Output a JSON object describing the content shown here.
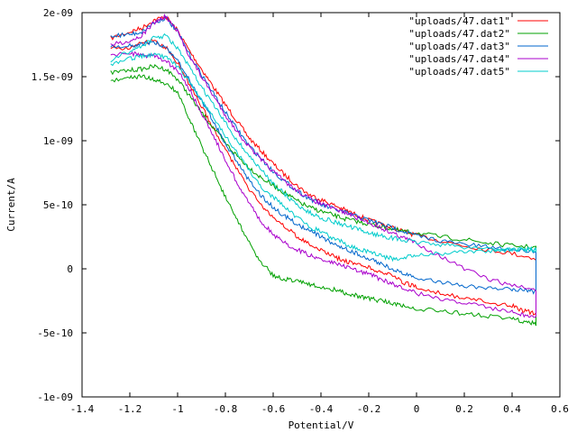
{
  "chart_data": {
    "type": "line",
    "title": "",
    "xlabel": "Potential/V",
    "ylabel": "Current/A",
    "xlim": [
      -1.4,
      0.6
    ],
    "ylim": [
      -1e-09,
      2e-09
    ],
    "x_ticks": [
      "-1.4",
      "-1.2",
      "-1",
      "-0.8",
      "-0.6",
      "-0.4",
      "-0.2",
      "0",
      "0.2",
      "0.4",
      "0.6"
    ],
    "y_ticks": [
      "-1e-09",
      "-5e-10",
      "0",
      "5e-10",
      "1e-09",
      "1.5e-09",
      "2e-09"
    ],
    "legend_position": "top-right",
    "grid": false,
    "note": "cyclic voltammograms: each series is a closed loop, values in V and A",
    "series": [
      {
        "name": "\"uploads/47.dat1\"",
        "color": "#ff0000",
        "x": [
          -1.28,
          -1.2,
          -1.15,
          -1.1,
          -1.05,
          -1.0,
          -0.95,
          -0.9,
          -0.85,
          -0.8,
          -0.75,
          -0.7,
          -0.65,
          -0.6,
          -0.55,
          -0.5,
          -0.45,
          -0.4,
          -0.35,
          -0.3,
          -0.25,
          -0.2,
          -0.15,
          -0.1,
          -0.05,
          0.0,
          0.1,
          0.2,
          0.3,
          0.4,
          0.5,
          0.5,
          0.45,
          0.4,
          0.3,
          0.2,
          0.1,
          0.0,
          -0.05,
          -0.1,
          -0.15,
          -0.2,
          -0.25,
          -0.3,
          -0.35,
          -0.4,
          -0.45,
          -0.5,
          -0.55,
          -0.6,
          -0.65,
          -0.7,
          -0.75,
          -0.8,
          -0.85,
          -0.9,
          -0.95,
          -1.0,
          -1.05,
          -1.1,
          -1.15,
          -1.2,
          -1.28
        ],
        "y": [
          1.8e-09,
          1.85e-09,
          1.88e-09,
          1.94e-09,
          1.97e-09,
          1.86e-09,
          1.7e-09,
          1.56e-09,
          1.42e-09,
          1.28e-09,
          1.15e-09,
          1.02e-09,
          9.2e-10,
          8.2e-10,
          7.3e-10,
          6.5e-10,
          5.8e-10,
          5.4e-10,
          5e-10,
          4.6e-10,
          4.2e-10,
          3.8e-10,
          3.5e-10,
          3.2e-10,
          2.9e-10,
          2.6e-10,
          2.2e-10,
          1.8e-10,
          1.5e-10,
          1.2e-10,
          8e-11,
          -3.5e-10,
          -3.3e-10,
          -2.9e-10,
          -2.6e-10,
          -2.3e-10,
          -1.9e-10,
          -1.4e-10,
          -1.1e-10,
          -6e-11,
          -2e-11,
          1e-11,
          3e-11,
          6e-11,
          1e-10,
          1.5e-10,
          2e-10,
          2.5e-10,
          3.3e-10,
          4e-10,
          5e-10,
          6.2e-10,
          7.7e-10,
          9.3e-10,
          1.1e-09,
          1.27e-09,
          1.44e-09,
          1.61e-09,
          1.73e-09,
          1.78e-09,
          1.76e-09,
          1.73e-09,
          1.72e-09
        ]
      },
      {
        "name": "\"uploads/47.dat2\"",
        "color": "#00a000",
        "x": [
          -1.28,
          -1.2,
          -1.15,
          -1.1,
          -1.05,
          -1.0,
          -0.95,
          -0.9,
          -0.85,
          -0.8,
          -0.75,
          -0.7,
          -0.65,
          -0.6,
          -0.55,
          -0.5,
          -0.45,
          -0.4,
          -0.35,
          -0.3,
          -0.25,
          -0.2,
          -0.15,
          -0.1,
          -0.05,
          0.0,
          0.1,
          0.2,
          0.3,
          0.4,
          0.5,
          0.5,
          0.45,
          0.4,
          0.3,
          0.2,
          0.1,
          0.0,
          -0.05,
          -0.1,
          -0.15,
          -0.2,
          -0.25,
          -0.3,
          -0.35,
          -0.4,
          -0.45,
          -0.5,
          -0.55,
          -0.6,
          -0.65,
          -0.7,
          -0.75,
          -0.8,
          -0.85,
          -0.9,
          -0.95,
          -1.0,
          -1.05,
          -1.1,
          -1.15,
          -1.2,
          -1.28
        ],
        "y": [
          1.53e-09,
          1.55e-09,
          1.56e-09,
          1.58e-09,
          1.56e-09,
          1.48e-09,
          1.35e-09,
          1.22e-09,
          1.1e-09,
          9.8e-10,
          8.8e-10,
          7.9e-10,
          7.1e-10,
          6.5e-10,
          5.9e-10,
          5.3e-10,
          4.8e-10,
          4.5e-10,
          4.2e-10,
          3.9e-10,
          3.7e-10,
          3.5e-10,
          3.3e-10,
          3.1e-10,
          2.9e-10,
          2.8e-10,
          2.5e-10,
          2.3e-10,
          2e-10,
          1.8e-10,
          1.7e-10,
          -4.3e-10,
          -4.1e-10,
          -3.9e-10,
          -3.7e-10,
          -3.5e-10,
          -3.3e-10,
          -3.1e-10,
          -2.9e-10,
          -2.7e-10,
          -2.5e-10,
          -2.3e-10,
          -2.1e-10,
          -1.9e-10,
          -1.6e-10,
          -1.4e-10,
          -1.2e-10,
          -1e-10,
          -8e-11,
          -5e-11,
          5e-11,
          2e-10,
          3.8e-10,
          5.6e-10,
          7.6e-10,
          9.6e-10,
          1.17e-09,
          1.38e-09,
          1.45e-09,
          1.48e-09,
          1.5e-09,
          1.49e-09,
          1.47e-09
        ]
      },
      {
        "name": "\"uploads/47.dat3\"",
        "color": "#0066cc",
        "x": [
          -1.28,
          -1.2,
          -1.15,
          -1.1,
          -1.05,
          -1.0,
          -0.95,
          -0.9,
          -0.85,
          -0.8,
          -0.75,
          -0.7,
          -0.65,
          -0.6,
          -0.55,
          -0.5,
          -0.45,
          -0.4,
          -0.35,
          -0.3,
          -0.25,
          -0.2,
          -0.15,
          -0.1,
          -0.05,
          0.0,
          0.1,
          0.2,
          0.3,
          0.4,
          0.5,
          0.5,
          0.45,
          0.4,
          0.3,
          0.2,
          0.1,
          0.0,
          -0.05,
          -0.1,
          -0.15,
          -0.2,
          -0.25,
          -0.3,
          -0.35,
          -0.4,
          -0.45,
          -0.5,
          -0.55,
          -0.6,
          -0.65,
          -0.7,
          -0.75,
          -0.8,
          -0.85,
          -0.9,
          -0.95,
          -1.0,
          -1.05,
          -1.1,
          -1.15,
          -1.2,
          -1.28
        ],
        "y": [
          1.82e-09,
          1.83e-09,
          1.85e-09,
          1.92e-09,
          1.96e-09,
          1.85e-09,
          1.67e-09,
          1.52e-09,
          1.37e-09,
          1.22e-09,
          1.09e-09,
          9.6e-10,
          8.6e-10,
          7.6e-10,
          6.8e-10,
          6.1e-10,
          5.5e-10,
          5e-10,
          4.7e-10,
          4.4e-10,
          4.1e-10,
          3.8e-10,
          3.5e-10,
          3.2e-10,
          2.9e-10,
          2.6e-10,
          2.2e-10,
          1.9e-10,
          1.7e-10,
          1.5e-10,
          1.4e-10,
          -1.8e-10,
          -1.7e-10,
          -1.6e-10,
          -1.5e-10,
          -1.3e-10,
          -1e-10,
          -7e-11,
          -4e-11,
          0.0,
          4e-11,
          8e-11,
          1.2e-10,
          1.6e-10,
          2e-10,
          2.5e-10,
          3e-10,
          3.5e-10,
          4.1e-10,
          4.8e-10,
          5.7e-10,
          6.9e-10,
          8.3e-10,
          9.8e-10,
          1.15e-09,
          1.31e-09,
          1.47e-09,
          1.62e-09,
          1.73e-09,
          1.77e-09,
          1.76e-09,
          1.74e-09,
          1.73e-09
        ]
      },
      {
        "name": "\"uploads/47.dat4\"",
        "color": "#aa00cc",
        "x": [
          -1.28,
          -1.2,
          -1.15,
          -1.1,
          -1.05,
          -1.0,
          -0.95,
          -0.9,
          -0.85,
          -0.8,
          -0.75,
          -0.7,
          -0.65,
          -0.6,
          -0.55,
          -0.5,
          -0.45,
          -0.4,
          -0.35,
          -0.3,
          -0.25,
          -0.2,
          -0.15,
          -0.1,
          -0.05,
          0.0,
          0.1,
          0.2,
          0.3,
          0.4,
          0.5,
          0.5,
          0.45,
          0.4,
          0.3,
          0.2,
          0.1,
          0.0,
          -0.05,
          -0.1,
          -0.15,
          -0.2,
          -0.25,
          -0.3,
          -0.35,
          -0.4,
          -0.45,
          -0.5,
          -0.55,
          -0.6,
          -0.65,
          -0.7,
          -0.75,
          -0.8,
          -0.85,
          -0.9,
          -0.95,
          -1.0,
          -1.05,
          -1.1,
          -1.15,
          -1.2,
          -1.28
        ],
        "y": [
          1.75e-09,
          1.78e-09,
          1.82e-09,
          1.92e-09,
          1.97e-09,
          1.85e-09,
          1.66e-09,
          1.5e-09,
          1.35e-09,
          1.2e-09,
          1.07e-09,
          9.5e-10,
          8.5e-10,
          7.6e-10,
          6.8e-10,
          6.1e-10,
          5.5e-10,
          5.1e-10,
          4.7e-10,
          4.4e-10,
          4e-10,
          3.6e-10,
          3.2e-10,
          2.8e-10,
          2.4e-10,
          2e-10,
          1e-10,
          0.0,
          -8e-11,
          -1.3e-10,
          -1.6e-10,
          -3.8e-10,
          -3.6e-10,
          -3.4e-10,
          -3e-10,
          -2.7e-10,
          -2.3e-10,
          -1.9e-10,
          -1.6e-10,
          -1.2e-10,
          -8e-11,
          -4e-11,
          -1e-11,
          2e-11,
          5e-11,
          8e-11,
          1.1e-10,
          1.5e-10,
          2e-10,
          2.7e-10,
          3.7e-10,
          5.1e-10,
          6.7e-10,
          8.5e-10,
          1.04e-09,
          1.22e-09,
          1.4e-09,
          1.55e-09,
          1.62e-09,
          1.66e-09,
          1.67e-09,
          1.68e-09,
          1.67e-09
        ]
      },
      {
        "name": "\"uploads/47.dat5\"",
        "color": "#00cccc",
        "x": [
          -1.28,
          -1.2,
          -1.15,
          -1.1,
          -1.05,
          -1.0,
          -0.95,
          -0.9,
          -0.85,
          -0.8,
          -0.75,
          -0.7,
          -0.65,
          -0.6,
          -0.55,
          -0.5,
          -0.45,
          -0.4,
          -0.35,
          -0.3,
          -0.25,
          -0.2,
          -0.15,
          -0.1,
          -0.05,
          0.0,
          0.1,
          0.2,
          0.3,
          0.4,
          0.5,
          0.5,
          0.45,
          0.4,
          0.3,
          0.2,
          0.1,
          0.0,
          -0.05,
          -0.1,
          -0.15,
          -0.2,
          -0.25,
          -0.3,
          -0.35,
          -0.4,
          -0.45,
          -0.5,
          -0.55,
          -0.6,
          -0.65,
          -0.7,
          -0.75,
          -0.8,
          -0.85,
          -0.9,
          -0.95,
          -1.0,
          -1.05,
          -1.1,
          -1.15,
          -1.2,
          -1.28
        ],
        "y": [
          1.62e-09,
          1.7e-09,
          1.74e-09,
          1.8e-09,
          1.82e-09,
          1.72e-09,
          1.57e-09,
          1.42e-09,
          1.28e-09,
          1.14e-09,
          1e-09,
          8.8e-10,
          7.7e-10,
          6.7e-10,
          5.8e-10,
          5e-10,
          4.4e-10,
          4e-10,
          3.7e-10,
          3.4e-10,
          3.1e-10,
          2.8e-10,
          2.6e-10,
          2.4e-10,
          2.2e-10,
          2.1e-10,
          1.9e-10,
          1.7e-10,
          1.6e-10,
          1.5e-10,
          1.5e-10,
          1.5e-10,
          1.5e-10,
          1.5e-10,
          1.4e-10,
          1.3e-10,
          1.2e-10,
          1e-10,
          9e-11,
          8e-11,
          1e-10,
          1.3e-10,
          1.6e-10,
          2e-10,
          2.4e-10,
          2.9e-10,
          3.3e-10,
          4e-10,
          4.8e-10,
          5.6e-10,
          6.4e-10,
          7.7e-10,
          9e-10,
          1.04e-09,
          1.18e-09,
          1.32e-09,
          1.46e-09,
          1.58e-09,
          1.65e-09,
          1.67e-09,
          1.66e-09,
          1.64e-09,
          1.6e-09
        ]
      }
    ]
  }
}
